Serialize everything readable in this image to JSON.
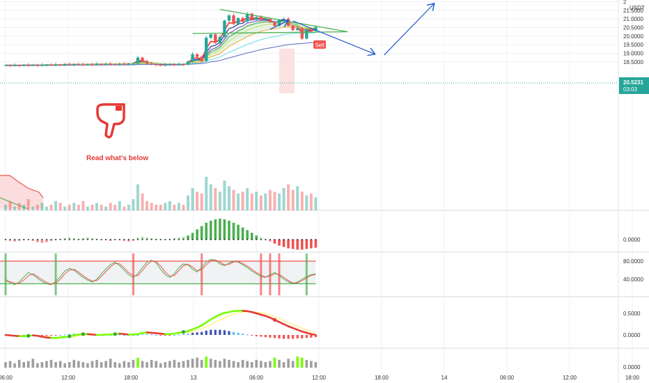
{
  "colors": {
    "up": "#26a69a",
    "down": "#ef5350",
    "grid": "#eef0f4",
    "axis_text": "#333333",
    "price_tag": "#26a69a",
    "trendline": "#4caf50",
    "arrow": "#1e55d0",
    "annotation": "#e53935",
    "sell": "#ef5350"
  },
  "annotations": {
    "read_below": "Read what's below",
    "sell": "Sell",
    "hand_icon": "pointing-down-hand-icon"
  },
  "price_tag": {
    "price": "20.5231",
    "countdown": "03:03"
  },
  "currency": "USDT",
  "chart_data": [
    {
      "type": "candlestick",
      "title": "",
      "xlabel": "",
      "ylabel": "",
      "ylim": [
        18.05,
        22.05
      ],
      "y_ticks": [
        "2",
        "21.5000",
        "21.0000",
        "20.5000",
        "20.0000",
        "19.5000",
        "19.0000",
        "18.5000"
      ],
      "y_tick_values": [
        22.0,
        21.5,
        21.0,
        20.5,
        20.0,
        19.5,
        19.0,
        18.5
      ],
      "x_ticks": [
        "06:00",
        "12:00",
        "18:00",
        "13",
        "06:00",
        "12:00",
        "18:00",
        "14",
        "06:00",
        "12:00",
        "18:00"
      ],
      "candles_close": [
        18.3,
        18.28,
        18.3,
        18.29,
        18.31,
        18.3,
        18.32,
        18.3,
        18.31,
        18.33,
        18.32,
        18.34,
        18.33,
        18.35,
        18.34,
        18.36,
        18.35,
        18.34,
        18.36,
        18.35,
        18.37,
        18.36,
        18.38,
        18.37,
        18.36,
        18.38,
        18.37,
        18.39,
        18.4,
        18.75,
        18.55,
        18.4,
        18.35,
        18.32,
        18.3,
        18.33,
        18.35,
        18.33,
        18.36,
        18.34,
        18.52,
        18.95,
        18.8,
        18.55,
        19.9,
        20.1,
        19.6,
        19.95,
        20.9,
        21.2,
        20.7,
        21.05,
        20.85,
        21.3,
        20.95,
        21.1,
        20.95,
        21.0,
        20.8,
        20.6,
        20.95,
        21.0,
        20.6,
        20.35,
        20.45,
        19.85,
        20.4,
        20.3,
        20.52
      ],
      "volume": [
        3,
        5,
        2,
        4,
        3,
        6,
        2,
        3,
        4,
        2,
        3,
        5,
        4,
        2,
        3,
        4,
        3,
        5,
        2,
        3,
        4,
        3,
        2,
        4,
        3,
        5,
        2,
        3,
        6,
        14,
        9,
        5,
        4,
        3,
        3,
        4,
        5,
        3,
        4,
        3,
        8,
        12,
        10,
        9,
        18,
        14,
        12,
        10,
        16,
        13,
        11,
        9,
        10,
        12,
        9,
        10,
        8,
        9,
        11,
        10,
        9,
        12,
        14,
        11,
        13,
        10,
        8,
        9,
        7
      ],
      "trendlines": [
        {
          "name": "upper",
          "from": [
            47,
            21.55
          ],
          "to": [
            75,
            20.25
          ]
        },
        {
          "name": "lower",
          "from": [
            41,
            20.15
          ],
          "to": [
            75,
            20.25
          ]
        }
      ],
      "projection": [
        {
          "from": [
            58,
            20.4
          ],
          "to": [
            62,
            20.9
          ]
        },
        {
          "from": [
            63,
            20.88
          ],
          "to": [
            81,
            18.95
          ]
        },
        {
          "from": [
            83,
            18.9
          ],
          "to": [
            94,
            21.9
          ]
        }
      ]
    },
    {
      "type": "histogram",
      "ylim": [
        -0.3,
        0.3
      ],
      "y_ticks": [
        "0.0000"
      ],
      "values": [
        0.0,
        -0.02,
        -0.03,
        -0.02,
        -0.01,
        0.0,
        -0.02,
        -0.04,
        -0.05,
        -0.04,
        -0.02,
        0.0,
        0.01,
        0.02,
        0.03,
        0.02,
        0.01,
        0.02,
        0.03,
        0.02,
        0.01,
        0.0,
        -0.01,
        -0.02,
        -0.01,
        0.0,
        -0.02,
        -0.03,
        -0.02,
        0.03,
        0.04,
        0.03,
        0.02,
        0.01,
        0.0,
        0.0,
        0.01,
        0.02,
        0.03,
        0.04,
        0.06,
        0.1,
        0.15,
        0.2,
        0.25,
        0.28,
        0.3,
        0.31,
        0.3,
        0.28,
        0.25,
        0.22,
        0.18,
        0.14,
        0.1,
        0.06,
        0.03,
        0.0,
        -0.03,
        -0.06,
        -0.09,
        -0.11,
        -0.13,
        -0.14,
        -0.15,
        -0.15,
        -0.14,
        -0.13,
        -0.12
      ]
    },
    {
      "type": "line",
      "ylim": [
        20,
        100
      ],
      "y_ticks": [
        "80.0000",
        "40.0000"
      ],
      "y_tick_values": [
        80,
        40
      ],
      "bands": [
        80,
        30
      ],
      "series": [
        {
          "values": [
            40,
            32,
            28,
            34,
            45,
            55,
            50,
            42,
            35,
            30,
            28,
            35,
            46,
            58,
            64,
            60,
            52,
            44,
            38,
            34,
            40,
            52,
            63,
            72,
            78,
            70,
            60,
            50,
            44,
            52,
            66,
            78,
            82,
            76,
            62,
            50,
            44,
            52,
            66,
            74,
            72,
            62,
            56,
            66,
            78,
            84,
            82,
            74,
            70,
            76,
            80,
            78,
            72,
            66,
            58,
            52,
            46,
            44,
            50,
            55,
            48,
            40,
            34,
            30,
            34,
            40,
            46,
            50,
            52
          ]
        },
        {
          "values": [
            36,
            35,
            31,
            31,
            38,
            48,
            52,
            46,
            39,
            33,
            29,
            31,
            40,
            52,
            60,
            62,
            56,
            48,
            41,
            36,
            37,
            46,
            57,
            67,
            75,
            74,
            65,
            55,
            47,
            48,
            59,
            72,
            80,
            79,
            69,
            56,
            47,
            48,
            59,
            70,
            73,
            67,
            59,
            61,
            72,
            81,
            83,
            78,
            72,
            73,
            78,
            79,
            75,
            69,
            62,
            55,
            49,
            45,
            47,
            52,
            51,
            44,
            37,
            32,
            32,
            37,
            43,
            48,
            51
          ]
        }
      ],
      "signals": [
        0,
        11,
        28,
        43,
        56,
        58,
        60,
        66
      ],
      "signal_types": [
        "buy",
        "buy",
        "sell",
        "sell",
        "sell",
        "sell",
        "sell",
        "buy"
      ]
    },
    {
      "type": "line",
      "ylim": [
        -0.15,
        0.75
      ],
      "y_ticks": [
        "0.5000",
        "0.0000"
      ],
      "y_tick_values": [
        0.5,
        0.0
      ],
      "series": [
        {
          "values": [
            0.0,
            -0.01,
            -0.02,
            -0.03,
            -0.03,
            -0.02,
            -0.01,
            -0.02,
            -0.04,
            -0.06,
            -0.07,
            -0.07,
            -0.06,
            -0.05,
            -0.03,
            -0.01,
            0.01,
            0.02,
            0.02,
            0.01,
            0.0,
            0.0,
            0.01,
            0.01,
            0.02,
            0.03,
            0.02,
            0.01,
            0.01,
            0.02,
            0.05,
            0.06,
            0.05,
            0.04,
            0.03,
            0.02,
            0.02,
            0.03,
            0.05,
            0.07,
            0.09,
            0.13,
            0.17,
            0.22,
            0.29,
            0.36,
            0.42,
            0.47,
            0.51,
            0.53,
            0.55,
            0.56,
            0.56,
            0.55,
            0.53,
            0.5,
            0.47,
            0.44,
            0.4,
            0.35,
            0.3,
            0.25,
            0.2,
            0.16,
            0.12,
            0.08,
            0.05,
            0.02,
            0.0
          ]
        },
        {
          "values": [
            0.0,
            -0.01,
            -0.01,
            -0.02,
            -0.02,
            -0.02,
            -0.02,
            -0.02,
            -0.03,
            -0.04,
            -0.05,
            -0.06,
            -0.06,
            -0.06,
            -0.05,
            -0.04,
            -0.02,
            -0.01,
            0.0,
            0.0,
            0.0,
            0.0,
            0.0,
            0.01,
            0.01,
            0.02,
            0.02,
            0.02,
            0.02,
            0.02,
            0.03,
            0.04,
            0.04,
            0.04,
            0.04,
            0.03,
            0.03,
            0.03,
            0.04,
            0.05,
            0.06,
            0.08,
            0.11,
            0.15,
            0.19,
            0.24,
            0.3,
            0.35,
            0.4,
            0.44,
            0.48,
            0.51,
            0.53,
            0.54,
            0.54,
            0.53,
            0.51,
            0.49,
            0.46,
            0.42,
            0.38,
            0.34,
            0.29,
            0.25,
            0.2,
            0.16,
            0.12,
            0.08,
            0.05
          ]
        }
      ],
      "histogram": [
        0.0,
        -0.01,
        -0.01,
        -0.01,
        -0.01,
        0.0,
        0.01,
        0.0,
        -0.01,
        -0.02,
        -0.02,
        -0.01,
        0.0,
        0.01,
        0.02,
        0.03,
        0.03,
        0.03,
        0.02,
        0.01,
        0.0,
        0.0,
        0.01,
        0.0,
        0.01,
        0.01,
        0.0,
        -0.01,
        -0.01,
        0.0,
        0.02,
        0.02,
        0.01,
        0.0,
        -0.01,
        -0.01,
        -0.01,
        0.0,
        0.01,
        0.02,
        0.03,
        0.05,
        0.06,
        0.07,
        0.1,
        0.12,
        0.12,
        0.12,
        0.11,
        0.09,
        0.07,
        0.05,
        0.03,
        0.01,
        -0.01,
        -0.03,
        -0.04,
        -0.05,
        -0.06,
        -0.07,
        -0.08,
        -0.09,
        -0.09,
        -0.09,
        -0.08,
        -0.08,
        -0.07,
        -0.06,
        -0.05
      ]
    },
    {
      "type": "bar",
      "ylim": [
        0,
        1
      ],
      "y_ticks": [
        "0.0000"
      ],
      "y_tick_values": [
        0.0
      ],
      "values": [
        0.5,
        0.6,
        0.4,
        0.7,
        0.5,
        0.6,
        0.8,
        0.4,
        0.5,
        0.6,
        0.7,
        0.5,
        0.6,
        0.4,
        0.5,
        0.7,
        0.6,
        0.5,
        0.4,
        0.6,
        0.7,
        0.5,
        0.6,
        0.8,
        0.5,
        0.4,
        0.6,
        0.5,
        0.7,
        0.9,
        0.6,
        0.5,
        0.7,
        0.6,
        0.4,
        0.5,
        0.6,
        0.7,
        0.5,
        0.6,
        0.7,
        0.8,
        0.9,
        0.7,
        1.0,
        0.8,
        0.7,
        0.6,
        0.8,
        0.7,
        0.6,
        0.5,
        0.7,
        0.6,
        0.5,
        0.7,
        0.6,
        0.5,
        0.6,
        0.9,
        0.7,
        0.5,
        0.8,
        0.6,
        1.0,
        0.9,
        0.7,
        0.6,
        0.5
      ]
    }
  ]
}
